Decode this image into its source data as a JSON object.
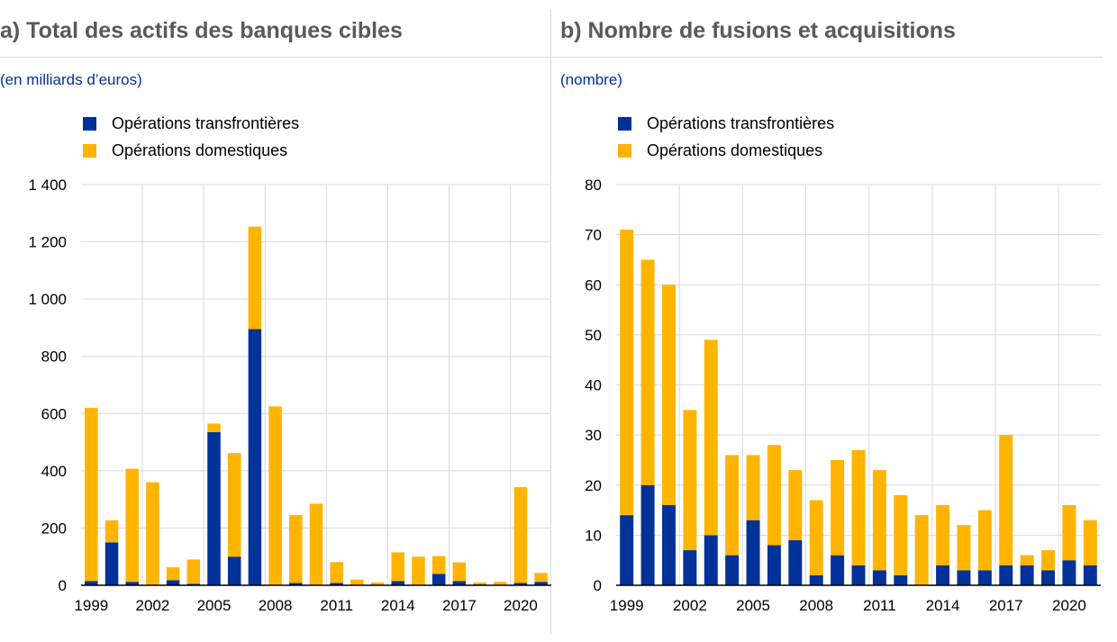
{
  "colors": {
    "cross_border": "#003299",
    "domestic": "#ffb400",
    "grid": "#d9d9d9",
    "title": "#595959",
    "unit": "#003299"
  },
  "chart_data": [
    {
      "type": "bar",
      "stacked": true,
      "title": "a) Total des actifs des banques cibles",
      "subtitle": "(en milliards d’euros)",
      "x": [
        1999,
        2000,
        2001,
        2002,
        2003,
        2004,
        2005,
        2006,
        2007,
        2008,
        2009,
        2010,
        2011,
        2012,
        2013,
        2014,
        2015,
        2016,
        2017,
        2018,
        2019,
        2020,
        2021
      ],
      "x_tick_labels": [
        "1999",
        "2002",
        "2005",
        "2008",
        "2011",
        "2014",
        "2017",
        "2020"
      ],
      "y_tick_labels": [
        "0",
        "200",
        "400",
        "600",
        "800",
        "1 000",
        "1 200",
        "1 400"
      ],
      "ylim": [
        0,
        1400
      ],
      "grid": true,
      "legend_position": "top-left",
      "series": [
        {
          "name": "Opérations transfrontières",
          "color": "#003299",
          "values": [
            15,
            150,
            12,
            0,
            18,
            5,
            535,
            100,
            895,
            0,
            8,
            0,
            8,
            0,
            0,
            15,
            0,
            40,
            15,
            3,
            0,
            8,
            12
          ]
        },
        {
          "name": "Opérations domestiques",
          "color": "#ffb400",
          "values": [
            605,
            77,
            395,
            360,
            45,
            85,
            30,
            362,
            358,
            625,
            237,
            285,
            73,
            20,
            10,
            100,
            100,
            62,
            65,
            7,
            12,
            335,
            31
          ]
        }
      ]
    },
    {
      "type": "bar",
      "stacked": true,
      "title": "b) Nombre de fusions et acquisitions",
      "subtitle": "(nombre)",
      "x": [
        1999,
        2000,
        2001,
        2002,
        2003,
        2004,
        2005,
        2006,
        2007,
        2008,
        2009,
        2010,
        2011,
        2012,
        2013,
        2014,
        2015,
        2016,
        2017,
        2018,
        2019,
        2020,
        2021
      ],
      "x_tick_labels": [
        "1999",
        "2002",
        "2005",
        "2008",
        "2011",
        "2014",
        "2017",
        "2020"
      ],
      "y_tick_labels": [
        "0",
        "10",
        "20",
        "30",
        "40",
        "50",
        "60",
        "70",
        "80"
      ],
      "ylim": [
        0,
        80
      ],
      "grid": true,
      "legend_position": "top-left",
      "series": [
        {
          "name": "Opérations transfrontières",
          "color": "#003299",
          "values": [
            14,
            20,
            16,
            7,
            10,
            6,
            13,
            8,
            9,
            2,
            6,
            4,
            3,
            2,
            0,
            4,
            3,
            3,
            4,
            4,
            3,
            5,
            4
          ]
        },
        {
          "name": "Opérations domestiques",
          "color": "#ffb400",
          "values": [
            57,
            45,
            44,
            28,
            39,
            20,
            13,
            20,
            14,
            15,
            19,
            23,
            20,
            16,
            14,
            12,
            9,
            12,
            26,
            2,
            4,
            11,
            9
          ]
        }
      ]
    }
  ]
}
